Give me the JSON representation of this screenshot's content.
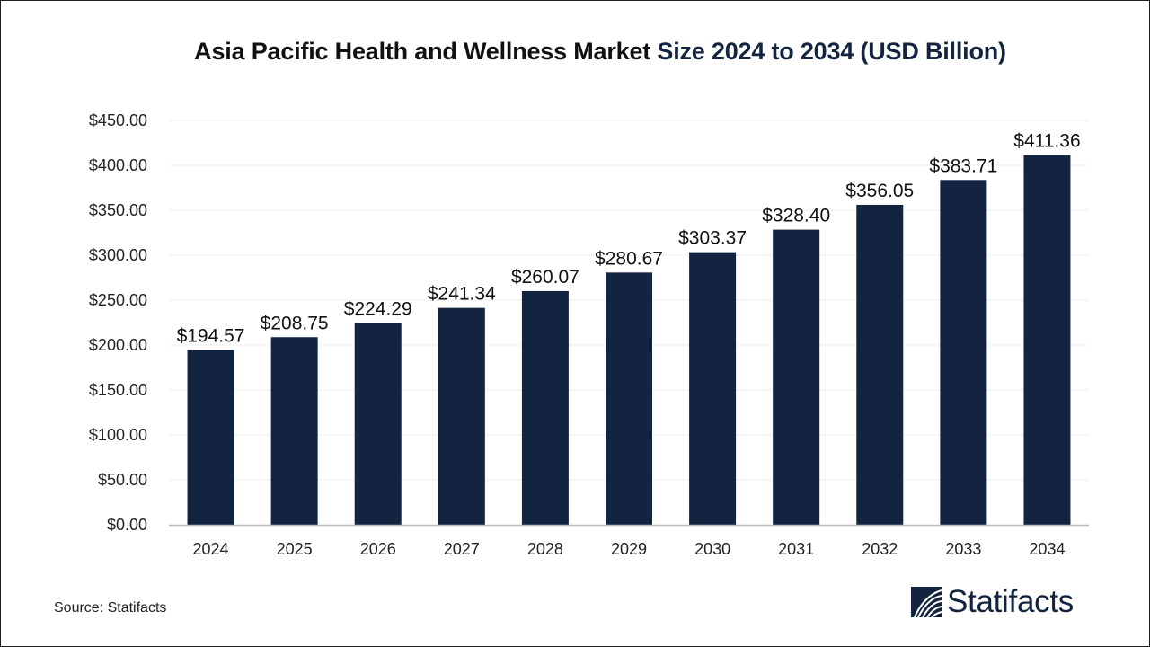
{
  "chart_data": {
    "type": "bar",
    "title": "Asia Pacific Health and Wellness Market Size 2024 to 2034  (USD Billion)",
    "title_part1": "Asia Pacific Health and Wellness Market",
    "title_part2": "Size 2024 to 2034  (USD Billion)",
    "categories": [
      "2024",
      "2025",
      "2026",
      "2027",
      "2028",
      "2029",
      "2030",
      "2031",
      "2032",
      "2033",
      "2034"
    ],
    "values": [
      194.57,
      208.75,
      224.29,
      241.34,
      260.07,
      280.67,
      303.37,
      328.4,
      356.05,
      383.71,
      411.36
    ],
    "data_labels": [
      "$194.57",
      "$208.75",
      "$224.29",
      "$241.34",
      "$260.07",
      "$280.67",
      "$303.37",
      "$328.40",
      "$356.05",
      "$383.71",
      "$411.36"
    ],
    "yticks": [
      "$0.00",
      "$50.00",
      "$100.00",
      "$150.00",
      "$200.00",
      "$250.00",
      "$300.00",
      "$350.00",
      "$400.00",
      "$450.00"
    ],
    "ylim": [
      0,
      450
    ],
    "xlabel": "",
    "ylabel": "",
    "grid": true,
    "bar_color": "#12243f"
  },
  "source": "Source: Statifacts",
  "logo": {
    "text": "Statifacts",
    "icon": "statifacts-wave-logo-icon"
  }
}
